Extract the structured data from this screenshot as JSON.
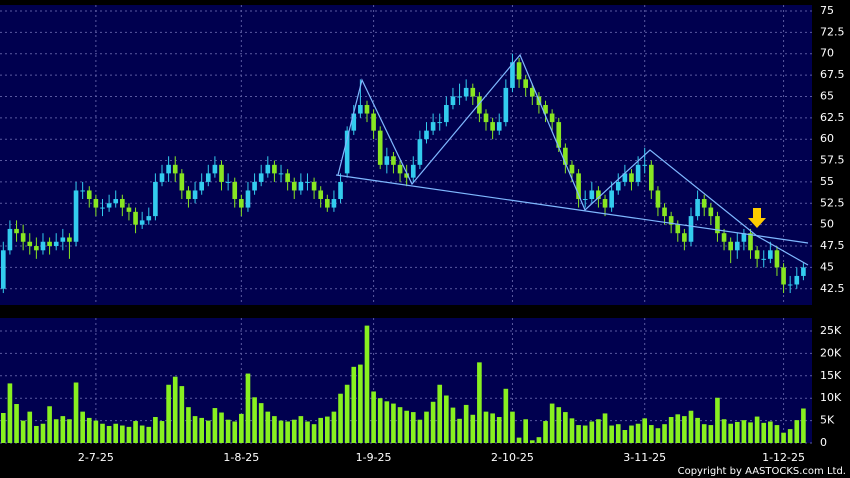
{
  "chart_data": {
    "type": "candlestick",
    "open": [
      42.5,
      47,
      49.5,
      49,
      48,
      47.5,
      47,
      48,
      47.5,
      48,
      48.5,
      48,
      54,
      54,
      53,
      52,
      52,
      52.5,
      53,
      52,
      51.5,
      50,
      50.5,
      51,
      55,
      56,
      57,
      56,
      54,
      53,
      54,
      55,
      56,
      57,
      55,
      55,
      53,
      52,
      54,
      55,
      56,
      57,
      56,
      56,
      55,
      54,
      55,
      55,
      54,
      53,
      52,
      53,
      56,
      61,
      63,
      64,
      63,
      61,
      57,
      58,
      57,
      56,
      55.5,
      57,
      60,
      61,
      62,
      62,
      64,
      65,
      65,
      66,
      65,
      63,
      62,
      61,
      62,
      66,
      69,
      67,
      66,
      65,
      64,
      63,
      62,
      59,
      57,
      56,
      53,
      53,
      54,
      53,
      52,
      54,
      55,
      56,
      55,
      57,
      57,
      54,
      52,
      51,
      50,
      49,
      48,
      51,
      53,
      52,
      51,
      49,
      48,
      47,
      48,
      49,
      47,
      46,
      46,
      47,
      45,
      43,
      43,
      44
    ],
    "high": [
      48,
      50.5,
      50.5,
      50,
      49,
      48.5,
      49,
      48.5,
      49,
      49.5,
      49,
      55,
      55,
      54.5,
      53.5,
      53,
      53.5,
      54,
      53.5,
      52.5,
      52,
      51.5,
      52,
      56,
      57,
      58,
      58,
      56.5,
      54.5,
      55,
      56,
      57,
      58,
      57.5,
      56,
      55.5,
      53.5,
      55,
      56,
      57,
      58,
      57.5,
      57,
      56.5,
      55.5,
      56,
      56,
      55.5,
      54.5,
      53.5,
      54,
      56,
      61.5,
      64,
      67,
      64.5,
      63.5,
      61.5,
      59,
      58.5,
      57.5,
      57,
      58,
      61,
      62,
      63,
      63,
      65,
      66,
      66.5,
      67,
      66.5,
      65.5,
      63.5,
      62.5,
      63,
      67,
      70,
      69.5,
      67.5,
      66.5,
      65.5,
      64.5,
      63.5,
      62.5,
      59.5,
      57.5,
      56.5,
      54,
      55,
      54.5,
      53.5,
      55,
      56,
      57,
      56.5,
      58,
      59,
      57.5,
      54.5,
      52.5,
      51.5,
      50.5,
      49.5,
      52,
      54,
      53.5,
      52.5,
      51.5,
      49.5,
      48.5,
      49,
      49.5,
      49.5,
      47.5,
      47,
      48,
      47.5,
      45.5,
      44,
      45,
      45.5
    ],
    "low": [
      42,
      46.5,
      48,
      47,
      46.5,
      46,
      46.5,
      46.5,
      47,
      47,
      46,
      47.5,
      53,
      52,
      51,
      51,
      51.5,
      52,
      51,
      50.5,
      49,
      49.5,
      50,
      50.5,
      54.5,
      55,
      55,
      53,
      52,
      52.5,
      53.5,
      54.5,
      55.5,
      54,
      54,
      52,
      51,
      51.5,
      53.5,
      54.5,
      55.5,
      55,
      55,
      54,
      53,
      53.5,
      54,
      53,
      52,
      51.5,
      51.5,
      52.5,
      55.5,
      60.5,
      62.5,
      62,
      60,
      56.5,
      56,
      56,
      55,
      54.5,
      55,
      56.5,
      59.5,
      60.5,
      61,
      61.5,
      63.5,
      64,
      64.5,
      64,
      62,
      61,
      60,
      60.5,
      61.5,
      65.5,
      66,
      65,
      64,
      63,
      62,
      61,
      58.5,
      56,
      55,
      52,
      52,
      52.5,
      52,
      51,
      51.5,
      53.5,
      54.5,
      54,
      54.5,
      56,
      53,
      51,
      50,
      49,
      48,
      47,
      47.5,
      50.5,
      51,
      50,
      48,
      47,
      45.5,
      46,
      47,
      46,
      45,
      45,
      45.5,
      44,
      42,
      42,
      42.5,
      43.5
    ],
    "close": [
      47,
      49.5,
      49,
      48,
      47.5,
      47,
      48,
      47.5,
      48,
      48.5,
      48,
      54,
      54,
      53,
      52,
      52,
      52.5,
      53,
      52,
      51.5,
      50,
      50.5,
      51,
      55,
      56,
      57,
      56,
      54,
      53,
      54,
      55,
      56,
      57,
      55,
      55,
      53,
      52,
      54,
      55,
      56,
      57,
      56,
      56,
      55,
      54,
      55,
      55,
      54,
      53,
      52,
      53,
      55,
      61,
      63,
      64,
      63,
      61,
      57,
      58,
      57,
      56,
      55.5,
      57,
      60,
      61,
      62,
      62,
      64,
      65,
      65,
      66,
      65,
      63,
      62,
      61,
      62,
      66,
      69,
      67,
      66,
      65,
      64,
      63,
      62,
      59,
      57,
      56,
      53,
      53,
      54,
      53,
      52,
      54,
      55,
      56,
      55,
      57,
      57,
      54,
      52,
      51,
      50,
      49,
      48,
      51,
      53,
      52,
      51,
      49,
      48,
      47,
      48,
      49,
      47,
      46,
      46,
      47,
      45,
      43,
      43,
      44,
      45
    ],
    "volume": [
      6700,
      13300,
      8700,
      5000,
      7000,
      3800,
      4300,
      8200,
      5300,
      6000,
      5300,
      13500,
      7000,
      5600,
      5000,
      4300,
      3800,
      4300,
      3900,
      3600,
      4900,
      3900,
      3600,
      5800,
      4900,
      13000,
      14800,
      12700,
      8000,
      6000,
      5600,
      5000,
      7800,
      6800,
      5200,
      4800,
      6500,
      15500,
      10200,
      8900,
      7000,
      6000,
      5000,
      4800,
      5200,
      6000,
      4800,
      4200,
      5600,
      5900,
      7000,
      11000,
      13000,
      17000,
      17500,
      26200,
      11500,
      10000,
      9300,
      8800,
      8000,
      7200,
      6900,
      5200,
      7000,
      9200,
      13000,
      10600,
      7900,
      5400,
      8500,
      6300,
      18000,
      7000,
      6600,
      5800,
      12100,
      7000,
      1200,
      5300,
      600,
      1300,
      4900,
      8800,
      8000,
      6900,
      5500,
      4000,
      3900,
      4800,
      5300,
      6600,
      3900,
      4200,
      2900,
      3900,
      4300,
      5500,
      4000,
      3300,
      4200,
      5800,
      6400,
      6000,
      7200,
      5600,
      4200,
      4000,
      10100,
      5300,
      4300,
      4700,
      5100,
      4600,
      5900,
      4500,
      4800,
      4000,
      2300,
      3100,
      5100,
      7700
    ],
    "up_color": "#33ccee",
    "down_color": "#88e622",
    "volume_color": "#88f020",
    "xlim": [
      -0.5,
      122.3
    ],
    "xticks": [
      {
        "value": 14,
        "label": "2-7-25"
      },
      {
        "value": 36,
        "label": "1-8-25"
      },
      {
        "value": 56,
        "label": "1-9-25"
      },
      {
        "value": 77,
        "label": "2-10-25"
      },
      {
        "value": 97,
        "label": "3-11-25"
      },
      {
        "value": 118,
        "label": "1-12-25"
      }
    ],
    "ylim": [
      40.6,
      75.7
    ],
    "yticks": [
      42.5,
      45,
      47.5,
      50,
      52.5,
      55,
      57.5,
      60,
      62.5,
      65,
      67.5,
      70,
      72.5,
      75
    ],
    "y2lim": [
      0,
      27900
    ],
    "y2ticks": [
      0,
      {
        "value": 5000,
        "label": "5K"
      },
      {
        "value": 10000,
        "label": "10K"
      },
      {
        "value": 15000,
        "label": "15K"
      },
      {
        "value": 20000,
        "label": "20K"
      },
      {
        "value": 25000,
        "label": "25K"
      }
    ],
    "grid": true,
    "copyright": "Copyright by AASTOCKS.com Ltd."
  }
}
